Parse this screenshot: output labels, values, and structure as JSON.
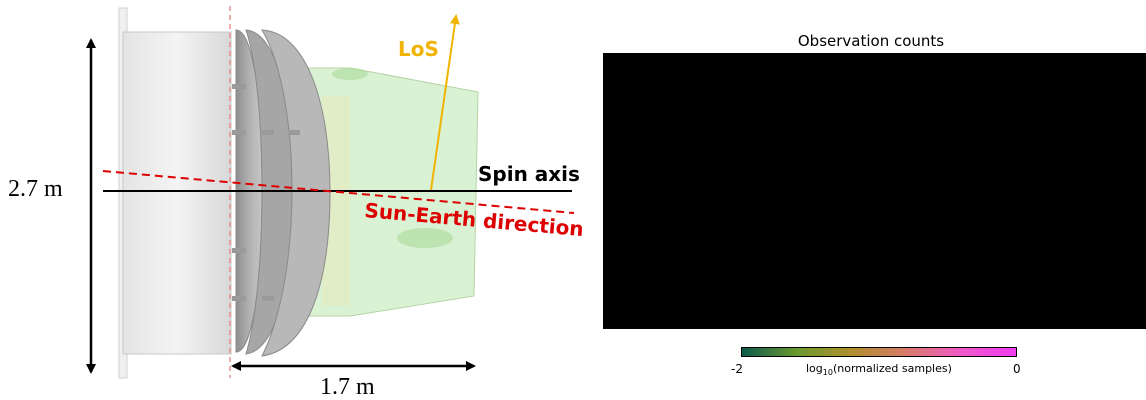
{
  "diagram": {
    "height_label": "2.7 m",
    "length_label": "1.7 m",
    "los_label": "LoS",
    "spin_axis_label": "Spin axis",
    "sun_earth_label": "Sun-Earth direction",
    "colors": {
      "los": "#f0b400",
      "sun_earth": "#dd0000",
      "spin_axis": "#000000"
    }
  },
  "map_panel": {
    "title": "Observation counts",
    "colorbar": {
      "min_label": "-2",
      "max_label": "0",
      "label_prefix": "log",
      "label_sub": "10",
      "label_suffix": "(normalized samples)",
      "colors": [
        "#0b5a4e",
        "#6a9a2e",
        "#b0902e",
        "#d87a6a",
        "#f05ac8",
        "#f03cf0"
      ]
    }
  }
}
